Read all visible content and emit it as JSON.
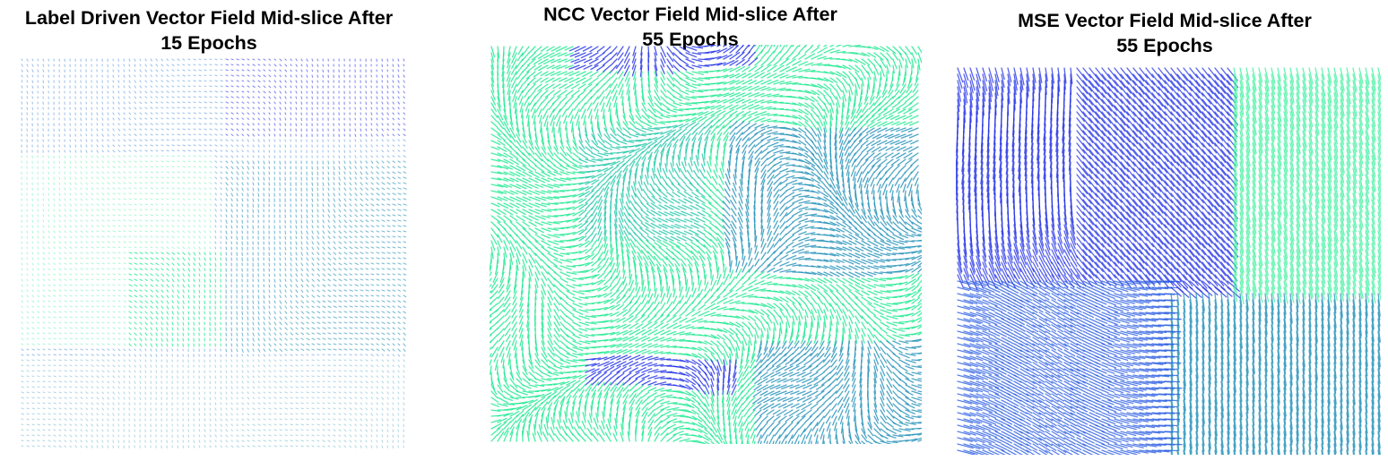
{
  "panels": [
    {
      "title_line1": "Label Driven Vector Field Mid-slice After",
      "title_line2": "15 Epochs"
    },
    {
      "title_line1": "NCC Vector Field Mid-slice After",
      "title_line2": "55 Epochs"
    },
    {
      "title_line1": "MSE Vector Field Mid-slice After",
      "title_line2": "55 Epochs"
    }
  ],
  "colors": {
    "blue": "#1f2ee6",
    "mid_blue": "#2a7bd8",
    "teal": "#2190b8",
    "green": "#19e98f",
    "light_green": "#34f09a"
  }
}
